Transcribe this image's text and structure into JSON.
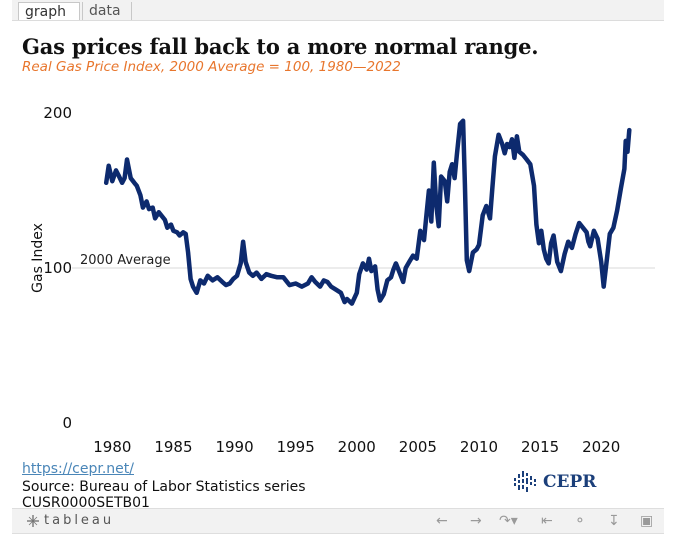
{
  "tabs": [
    {
      "label": "graph"
    },
    {
      "label": "data"
    }
  ],
  "title": "Gas prices fall back to a more normal range.",
  "subtitle": "Real Gas Price Index, 2000 Average = 100, 1980—2022",
  "colors": {
    "line": "#0d2a6e",
    "subtitle": "#e8762d",
    "link": "#4a86b8",
    "reference": "#d9d9d9",
    "logo": "#1b3f7a"
  },
  "source": {
    "link": "https://cepr.net/",
    "text": "Source: Bureau of Labor Statistics series",
    "series_id_partial": "CUSR0000SETB01"
  },
  "logo": {
    "name": "CEPR",
    "icon": "cepr-logo-icon"
  },
  "toolbar": {
    "brand": "tableau",
    "icons": [
      "undo-icon",
      "redo-icon",
      "revert-icon",
      "reset-icon",
      "share-icon",
      "download-icon",
      "fullscreen-icon"
    ]
  },
  "chart_data": {
    "type": "line",
    "title": "Gas prices fall back to a more normal range.",
    "subtitle": "Real Gas Price Index, 2000 Average = 100, 1980—2022",
    "xlabel": "",
    "ylabel": "Gas Index",
    "xlim": [
      1976.7,
      2024.4
    ],
    "ylim": [
      0,
      200
    ],
    "x_ticks": [
      1980,
      1985,
      1990,
      1995,
      2000,
      2005,
      2010,
      2015,
      2020
    ],
    "y_ticks": [
      0,
      100,
      200
    ],
    "grid": false,
    "reference_line": {
      "y": 100,
      "label": "2000 Average"
    },
    "series": [
      {
        "x": [
          1979.5,
          1979.7,
          1980.0,
          1980.3,
          1980.5,
          1980.8,
          1981.0,
          1981.2,
          1981.5,
          1981.8,
          1982.0,
          1982.3,
          1982.5,
          1982.8,
          1983.0,
          1983.3,
          1983.5,
          1983.8,
          1984.0,
          1984.3,
          1984.5,
          1984.8,
          1985.0,
          1985.3,
          1985.5,
          1985.8,
          1986.0,
          1986.2,
          1986.4,
          1986.6,
          1986.9,
          1987.2,
          1987.5,
          1987.8,
          1988.2,
          1988.6,
          1989.0,
          1989.3,
          1989.6,
          1989.9,
          1990.2,
          1990.5,
          1990.7,
          1990.9,
          1991.2,
          1991.5,
          1991.8,
          1992.2,
          1992.6,
          1993.0,
          1993.5,
          1994.0,
          1994.5,
          1995.0,
          1995.5,
          1996.0,
          1996.3,
          1996.6,
          1997.0,
          1997.3,
          1997.6,
          1997.9,
          1998.3,
          1998.7,
          1999.0,
          1999.2,
          1999.6,
          2000.0,
          2000.2,
          2000.5,
          2000.8,
          2001.0,
          2001.2,
          2001.5,
          2001.7,
          2001.9,
          2002.2,
          2002.5,
          2002.8,
          2003.0,
          2003.2,
          2003.5,
          2003.8,
          2004.0,
          2004.3,
          2004.6,
          2004.9,
          2005.2,
          2005.5,
          2005.7,
          2005.9,
          2006.1,
          2006.3,
          2006.5,
          2006.7,
          2006.9,
          2007.2,
          2007.4,
          2007.6,
          2007.8,
          2008.0,
          2008.2,
          2008.45,
          2008.7,
          2008.85,
          2009.0,
          2009.2,
          2009.5,
          2009.8,
          2010.0,
          2010.3,
          2010.6,
          2010.9,
          2011.1,
          2011.3,
          2011.6,
          2011.9,
          2012.1,
          2012.3,
          2012.5,
          2012.7,
          2012.9,
          2013.1,
          2013.3,
          2013.6,
          2013.9,
          2014.2,
          2014.5,
          2014.7,
          2014.9,
          2015.1,
          2015.3,
          2015.5,
          2015.7,
          2015.9,
          2016.1,
          2016.4,
          2016.7,
          2017.0,
          2017.3,
          2017.6,
          2017.9,
          2018.2,
          2018.5,
          2018.8,
          2018.95,
          2019.1,
          2019.4,
          2019.7,
          2020.0,
          2020.2,
          2020.35,
          2020.5,
          2020.7,
          2021.0,
          2021.3,
          2021.6,
          2021.9,
          2022.0,
          2022.15,
          2022.3
        ],
        "values": [
          155,
          166,
          156,
          163,
          160,
          155,
          158,
          170,
          158,
          155,
          153,
          147,
          139,
          143,
          138,
          139,
          132,
          136,
          134,
          131,
          126,
          128,
          124,
          123,
          121,
          123,
          122,
          110,
          93,
          88,
          84,
          92,
          90,
          95,
          92,
          94,
          91,
          89,
          90,
          93,
          95,
          103,
          117,
          104,
          97,
          95,
          97,
          93,
          96,
          95,
          94,
          94,
          89,
          90,
          88,
          90,
          94,
          91,
          88,
          92,
          91,
          88,
          86,
          84,
          78,
          80,
          77,
          84,
          96,
          103,
          99,
          106,
          98,
          101,
          86,
          79,
          83,
          92,
          94,
          99,
          103,
          97,
          91,
          100,
          104,
          108,
          106,
          124,
          118,
          134,
          150,
          130,
          168,
          141,
          127,
          159,
          156,
          143,
          162,
          167,
          158,
          174,
          193,
          195,
          154,
          105,
          98,
          110,
          112,
          115,
          134,
          140,
          132,
          152,
          172,
          186,
          180,
          174,
          180,
          178,
          183,
          171,
          185,
          175,
          173,
          170,
          167,
          153,
          128,
          116,
          124,
          112,
          106,
          103,
          116,
          121,
          104,
          98,
          109,
          117,
          113,
          122,
          129,
          126,
          123,
          117,
          114,
          124,
          119,
          104,
          88,
          98,
          108,
          122,
          126,
          137,
          151,
          164,
          182,
          175,
          189
        ]
      }
    ]
  }
}
